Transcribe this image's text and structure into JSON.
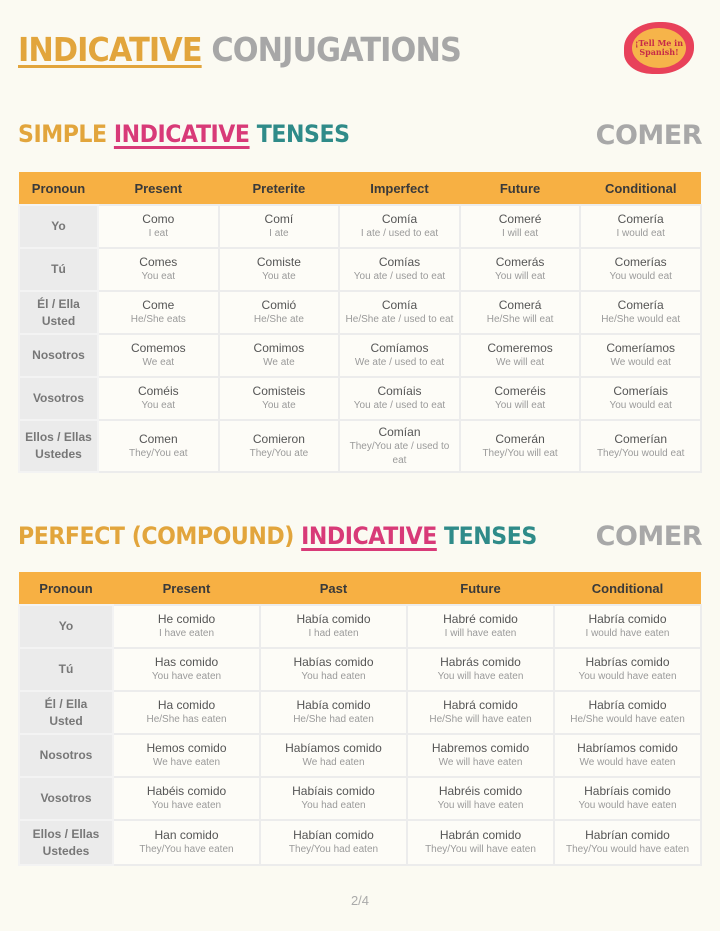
{
  "title": {
    "part1": "INDICATIVE",
    "part2": "CONJUGATIONS"
  },
  "logo": {
    "text": "¡Tell Me in Spanish!"
  },
  "simple": {
    "heading": {
      "w1": "SIMPLE",
      "w2": "INDICATIVE",
      "w3": "TENSES"
    },
    "verb": "COMER",
    "columns": [
      "Pronoun",
      "Present",
      "Preterite",
      "Imperfect",
      "Future",
      "Conditional"
    ],
    "rows": [
      {
        "pronoun": [
          "Yo"
        ],
        "cells": [
          [
            "Como",
            "I eat"
          ],
          [
            "Comí",
            "I ate"
          ],
          [
            "Comía",
            "I ate / used to eat"
          ],
          [
            "Comeré",
            "I will eat"
          ],
          [
            "Comería",
            "I would eat"
          ]
        ]
      },
      {
        "pronoun": [
          "Tú"
        ],
        "cells": [
          [
            "Comes",
            "You eat"
          ],
          [
            "Comiste",
            "You ate"
          ],
          [
            "Comías",
            "You ate / used to eat"
          ],
          [
            "Comerás",
            "You will eat"
          ],
          [
            "Comerías",
            "You would eat"
          ]
        ]
      },
      {
        "pronoun": [
          "Él / Ella",
          "Usted"
        ],
        "cells": [
          [
            "Come",
            "He/She eats"
          ],
          [
            "Comió",
            "He/She ate"
          ],
          [
            "Comía",
            "He/She ate / used to eat"
          ],
          [
            "Comerá",
            "He/She will eat"
          ],
          [
            "Comería",
            "He/She would eat"
          ]
        ]
      },
      {
        "pronoun": [
          "Nosotros"
        ],
        "cells": [
          [
            "Comemos",
            "We eat"
          ],
          [
            "Comimos",
            "We ate"
          ],
          [
            "Comíamos",
            "We ate / used to eat"
          ],
          [
            "Comeremos",
            "We will eat"
          ],
          [
            "Comeríamos",
            "We would eat"
          ]
        ]
      },
      {
        "pronoun": [
          "Vosotros"
        ],
        "cells": [
          [
            "Coméis",
            "You eat"
          ],
          [
            "Comisteis",
            "You ate"
          ],
          [
            "Comíais",
            "You ate / used to eat"
          ],
          [
            "Comeréis",
            "You will eat"
          ],
          [
            "Comeríais",
            "You would eat"
          ]
        ]
      },
      {
        "pronoun": [
          "Ellos / Ellas",
          "Ustedes"
        ],
        "cells": [
          [
            "Comen",
            "They/You eat"
          ],
          [
            "Comieron",
            "They/You ate"
          ],
          [
            "Comían",
            "They/You ate / used to eat"
          ],
          [
            "Comerán",
            "They/You will eat"
          ],
          [
            "Comerían",
            "They/You would eat"
          ]
        ]
      }
    ]
  },
  "perfect": {
    "heading": {
      "w1": "PERFECT (COMPOUND)",
      "w2": "INDICATIVE",
      "w3": "TENSES"
    },
    "verb": "COMER",
    "columns": [
      "Pronoun",
      "Present",
      "Past",
      "Future",
      "Conditional"
    ],
    "rows": [
      {
        "pronoun": [
          "Yo"
        ],
        "cells": [
          [
            "He comido",
            "I have eaten"
          ],
          [
            "Había comido",
            "I had eaten"
          ],
          [
            "Habré comido",
            "I will have eaten"
          ],
          [
            "Habría comido",
            "I would have eaten"
          ]
        ]
      },
      {
        "pronoun": [
          "Tú"
        ],
        "cells": [
          [
            "Has comido",
            "You have eaten"
          ],
          [
            "Habías comido",
            "You had eaten"
          ],
          [
            "Habrás comido",
            "You will have eaten"
          ],
          [
            "Habrías comido",
            "You would have eaten"
          ]
        ]
      },
      {
        "pronoun": [
          "Él / Ella",
          "Usted"
        ],
        "cells": [
          [
            "Ha comido",
            "He/She has eaten"
          ],
          [
            "Había comido",
            "He/She had eaten"
          ],
          [
            "Habrá comido",
            "He/She will have eaten"
          ],
          [
            "Habría comido",
            "He/She would have eaten"
          ]
        ]
      },
      {
        "pronoun": [
          "Nosotros"
        ],
        "cells": [
          [
            "Hemos comido",
            "We have eaten"
          ],
          [
            "Habíamos comido",
            "We had eaten"
          ],
          [
            "Habremos comido",
            "We will have eaten"
          ],
          [
            "Habríamos comido",
            "We would have eaten"
          ]
        ]
      },
      {
        "pronoun": [
          "Vosotros"
        ],
        "cells": [
          [
            "Habéis comido",
            "You have eaten"
          ],
          [
            "Habíais comido",
            "You had eaten"
          ],
          [
            "Habréis comido",
            "You will have eaten"
          ],
          [
            "Habríais comido",
            "You would have eaten"
          ]
        ]
      },
      {
        "pronoun": [
          "Ellos / Ellas",
          "Ustedes"
        ],
        "cells": [
          [
            "Han comido",
            "They/You have eaten"
          ],
          [
            "Habían comido",
            "They/You had eaten"
          ],
          [
            "Habrán comido",
            "They/You will have eaten"
          ],
          [
            "Habrían comido",
            "They/You would have eaten"
          ]
        ]
      }
    ]
  },
  "page_number": "2/4",
  "colors": {
    "header": "#f7b043",
    "orange": "#e2a53c",
    "pink": "#d83a78",
    "teal": "#2f8b89",
    "gray": "#a7a7a7"
  }
}
